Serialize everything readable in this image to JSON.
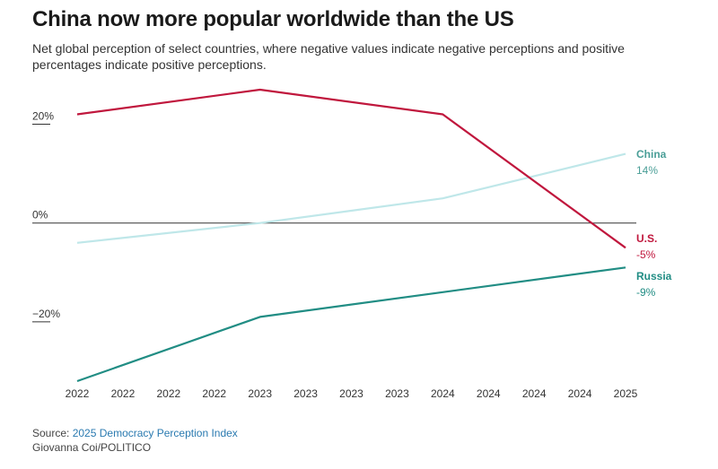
{
  "title": "China now more popular worldwide than the US",
  "subtitle": "Net global perception of select countries, where negative values indicate negative perceptions and positive percentages indicate positive perceptions.",
  "chart_data": {
    "type": "line",
    "title": "China now more popular worldwide than the US",
    "xlabel": "",
    "ylabel": "",
    "ylim": [
      -35,
      27
    ],
    "y_ticks": [
      {
        "value": 20,
        "label": "20%"
      },
      {
        "value": 0,
        "label": "0%"
      },
      {
        "value": -20,
        "label": "−20%"
      }
    ],
    "categories": [
      "2022",
      "2022",
      "2022",
      "2022",
      "2023",
      "2023",
      "2023",
      "2023",
      "2024",
      "2024",
      "2024",
      "2024",
      "2025"
    ],
    "series": [
      {
        "name": "U.S.",
        "color": "#c0173d",
        "value_label": "-5%",
        "x": [
          0,
          4,
          8,
          12
        ],
        "values": [
          22,
          27,
          22,
          -5
        ]
      },
      {
        "name": "China",
        "color": "#bfe7e9",
        "label_color": "#4a9e97",
        "value_label": "14%",
        "x": [
          0,
          4,
          8,
          12
        ],
        "values": [
          -4,
          0,
          5,
          14
        ]
      },
      {
        "name": "Russia",
        "color": "#218d84",
        "value_label": "-9%",
        "x": [
          0,
          4,
          8,
          12
        ],
        "values": [
          -32,
          -19,
          -14,
          -9
        ]
      }
    ]
  },
  "footer": {
    "source_prefix": "Source: ",
    "source_name": "2025 Democracy Perception Index",
    "credit": "Giovanna Coi/POLITICO"
  }
}
